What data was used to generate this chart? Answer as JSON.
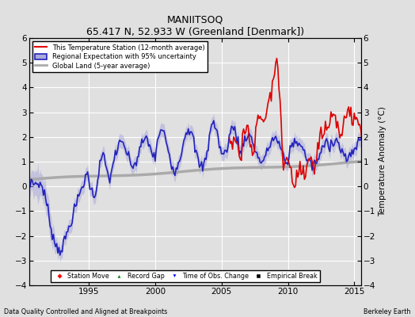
{
  "title": "MANIITSOQ",
  "subtitle": "65.417 N, 52.933 W (Greenland [Denmark])",
  "ylabel": "Temperature Anomaly (°C)",
  "xlabel_left": "Data Quality Controlled and Aligned at Breakpoints",
  "xlabel_right": "Berkeley Earth",
  "ylim": [
    -4,
    6
  ],
  "xlim": [
    1990.5,
    2015.5
  ],
  "yticks": [
    -4,
    -3,
    -2,
    -1,
    0,
    1,
    2,
    3,
    4,
    5,
    6
  ],
  "xticks": [
    1995,
    2000,
    2005,
    2010,
    2015
  ],
  "bg_color": "#e0e0e0",
  "plot_bg_color": "#e0e0e0",
  "grid_color": "white",
  "uncertainty_color": "#aaaadd",
  "uncertainty_alpha": 0.55,
  "regional_color": "#2222bb",
  "station_color": "#dd0000",
  "global_color": "#aaaaaa"
}
